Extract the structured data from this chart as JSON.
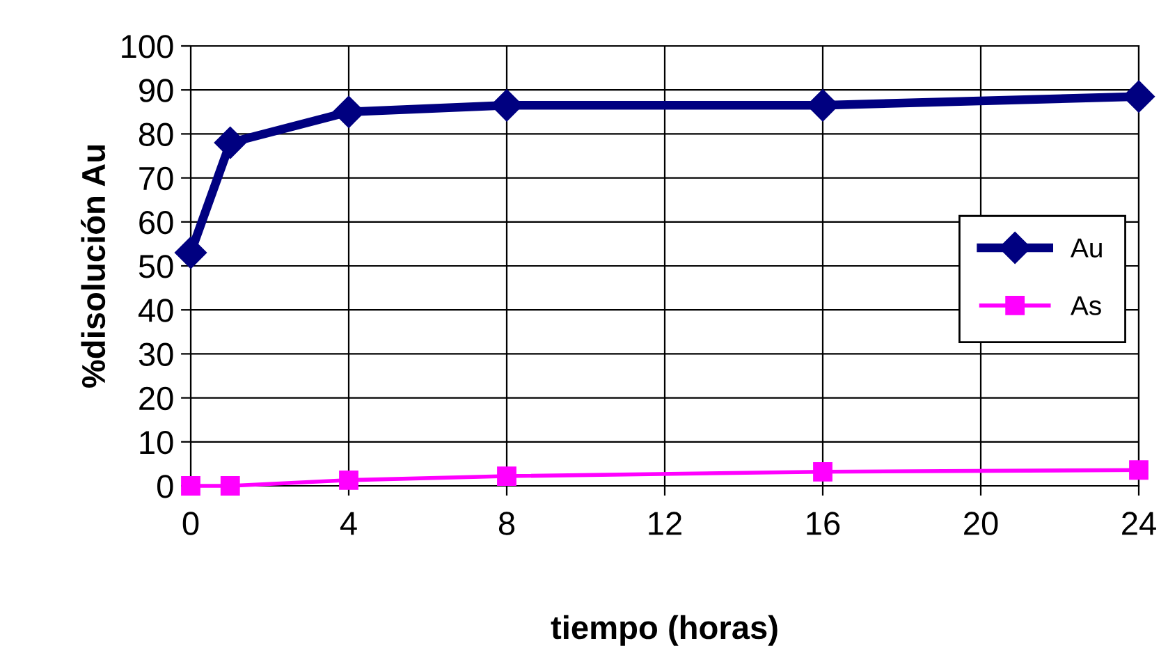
{
  "chart_data": {
    "type": "line",
    "xlabel": "tiempo (horas)",
    "ylabel": "%disolución Au",
    "x": [
      0,
      1,
      4,
      8,
      16,
      24
    ],
    "series": [
      {
        "name": "Au",
        "color": "#000080",
        "values": [
          53,
          78,
          85,
          86.5,
          86.5,
          88.5
        ],
        "marker": "diamond"
      },
      {
        "name": "As",
        "color": "#ff00ff",
        "values": [
          0,
          0,
          1.3,
          2.2,
          3.2,
          3.6
        ],
        "marker": "square"
      }
    ],
    "xlim": [
      0,
      24
    ],
    "xticks": [
      0,
      4,
      8,
      12,
      16,
      20,
      24
    ],
    "ylim": [
      0,
      100
    ],
    "yticks": [
      0,
      10,
      20,
      30,
      40,
      50,
      60,
      70,
      80,
      90,
      100
    ],
    "grid": true,
    "legend": "right",
    "line_style": "solid"
  }
}
